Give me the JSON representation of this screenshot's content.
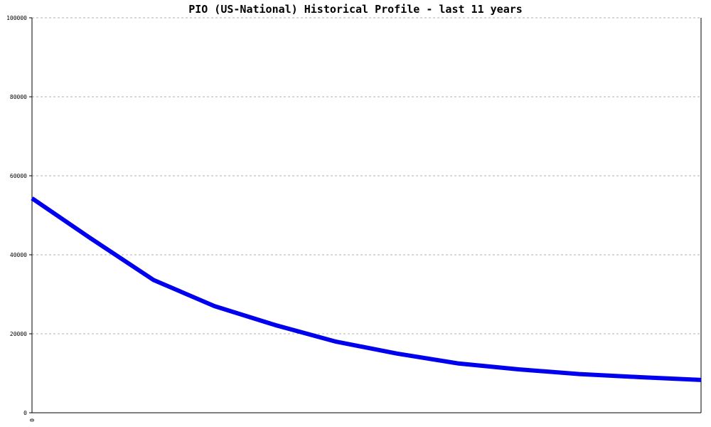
{
  "chart_data": {
    "type": "line",
    "title": "PIO (US-National) Historical Profile - last 11 years",
    "xlabel": "",
    "ylabel": "",
    "ylim": [
      0,
      100000
    ],
    "yticks": [
      0,
      20000,
      40000,
      60000,
      80000,
      100000
    ],
    "ytick_labels": [
      "0",
      "20000",
      "40000",
      "60000",
      "80000",
      "100000"
    ],
    "xtick_labels": [
      "0"
    ],
    "grid": "horizontal dotted",
    "series": [
      {
        "color": "#0000ee",
        "x": [
          0,
          1,
          2,
          3,
          4,
          5,
          6,
          7,
          8,
          9,
          10,
          11
        ],
        "values": [
          54300,
          43800,
          33600,
          27000,
          22200,
          18000,
          15000,
          12500,
          11000,
          9800,
          9000,
          8300
        ]
      }
    ]
  }
}
